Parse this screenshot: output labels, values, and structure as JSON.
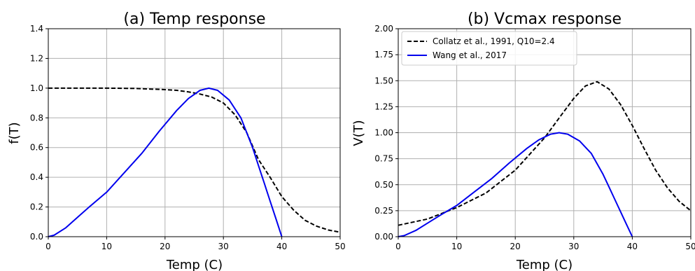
{
  "chart_data": [
    {
      "type": "line",
      "title": "(a) Temp response",
      "xlabel": "Temp (C)",
      "ylabel": "f(T)",
      "xlim": [
        0,
        50
      ],
      "ylim": [
        0,
        1.4
      ],
      "xticks": [
        "0",
        "10",
        "20",
        "30",
        "40",
        "50"
      ],
      "yticks": [
        "0.0",
        "0.2",
        "0.4",
        "0.6",
        "0.8",
        "1.0",
        "1.2",
        "1.4"
      ],
      "grid": true,
      "series": [
        {
          "color": "#000000",
          "style": "dashed",
          "x": [
            0,
            5,
            10,
            15,
            20,
            22,
            24,
            26,
            28,
            30,
            32,
            34,
            36,
            38,
            40,
            42,
            44,
            46,
            48,
            50
          ],
          "y": [
            1.0,
            1.0,
            1.0,
            0.998,
            0.99,
            0.985,
            0.975,
            0.96,
            0.94,
            0.9,
            0.82,
            0.7,
            0.52,
            0.4,
            0.27,
            0.18,
            0.11,
            0.07,
            0.045,
            0.03
          ]
        },
        {
          "color": "#0000ee",
          "style": "solid",
          "x": [
            0,
            1,
            3,
            5,
            7,
            10,
            13,
            16,
            19,
            22,
            24,
            26,
            27.5,
            29,
            31,
            33,
            35,
            36,
            37,
            38,
            39,
            40
          ],
          "y": [
            0.0,
            0.01,
            0.06,
            0.13,
            0.2,
            0.3,
            0.43,
            0.56,
            0.71,
            0.85,
            0.93,
            0.985,
            1.0,
            0.985,
            0.92,
            0.8,
            0.6,
            0.48,
            0.36,
            0.24,
            0.12,
            0.0
          ]
        }
      ]
    },
    {
      "type": "line",
      "title": "(b) Vcmax response",
      "xlabel": "Temp (C)",
      "ylabel": "V(T)",
      "xlim": [
        0,
        50
      ],
      "ylim": [
        0,
        2.0
      ],
      "xticks": [
        "0",
        "10",
        "20",
        "30",
        "40",
        "50"
      ],
      "yticks": [
        "0.00",
        "0.25",
        "0.50",
        "0.75",
        "1.00",
        "1.25",
        "1.50",
        "1.75",
        "2.00"
      ],
      "grid": true,
      "legend": {
        "placement": "top-left",
        "entries": [
          "Collatz et al., 1991, Q10=2.4",
          "Wang et al., 2017"
        ]
      },
      "series": [
        {
          "name": "Collatz et al., 1991, Q10=2.4",
          "color": "#000000",
          "style": "dashed",
          "x": [
            0,
            5,
            10,
            15,
            20,
            25,
            28,
            30,
            32,
            34,
            36,
            38,
            40,
            42,
            44,
            46,
            48,
            50
          ],
          "y": [
            0.11,
            0.17,
            0.28,
            0.42,
            0.64,
            0.95,
            1.18,
            1.33,
            1.45,
            1.49,
            1.42,
            1.27,
            1.07,
            0.85,
            0.64,
            0.47,
            0.34,
            0.25
          ]
        },
        {
          "name": "Wang et al., 2017",
          "color": "#0000ee",
          "style": "solid",
          "x": [
            0,
            1,
            3,
            5,
            7,
            10,
            13,
            16,
            19,
            22,
            24,
            26,
            27.5,
            29,
            31,
            33,
            35,
            36,
            37,
            38,
            39,
            40
          ],
          "y": [
            0.0,
            0.01,
            0.06,
            0.13,
            0.2,
            0.3,
            0.43,
            0.56,
            0.71,
            0.85,
            0.93,
            0.985,
            1.0,
            0.985,
            0.92,
            0.8,
            0.6,
            0.48,
            0.36,
            0.24,
            0.12,
            0.0
          ]
        }
      ]
    }
  ]
}
